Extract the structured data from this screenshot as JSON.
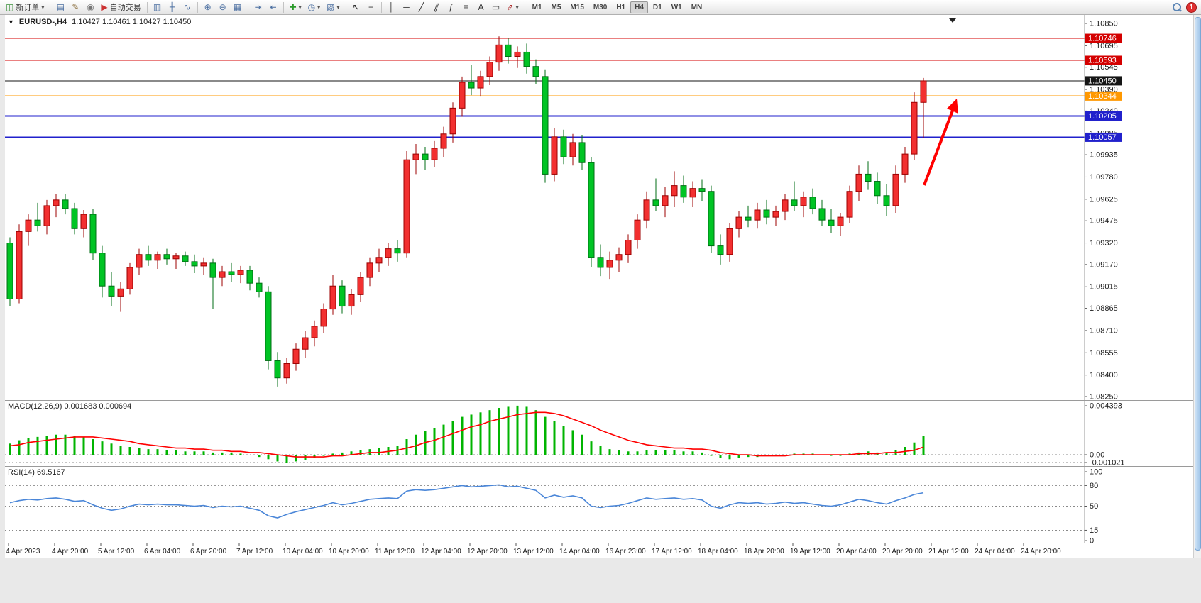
{
  "toolbar": {
    "new_order_label": "新订单",
    "auto_trading_label": "自动交易",
    "timeframes": [
      "M1",
      "M5",
      "M15",
      "M30",
      "H1",
      "H4",
      "D1",
      "W1",
      "MN"
    ],
    "active_timeframe": "H4",
    "notification_count": "1",
    "icon_glyphs": {
      "new_order": "◫",
      "profiles": "▤",
      "scripts": "✎",
      "experts": "◉",
      "auto_play": "▶",
      "bar_chart": "▥",
      "candle_chart": "╂",
      "line_chart": "∿",
      "zoom_in": "⊕",
      "zoom_out": "⊖",
      "tile": "▦",
      "auto_scroll": "⇥",
      "chart_shift": "⇤",
      "plus": "✚",
      "clock": "◷",
      "template": "▧",
      "cursor": "↖",
      "crosshair": "+",
      "vline": "│",
      "hline": "─",
      "trend": "╱",
      "channel": "∥",
      "fib": "ƒ",
      "grid": "≡",
      "text": "A",
      "label": "▭",
      "arrows": "⇗",
      "caret": "▾",
      "oct_toggle": "▼",
      "shift_marker": "▼"
    }
  },
  "chart": {
    "symbol_title": "EURUSD-,H4",
    "ohlc_text": "1.10427 1.10461 1.10427 1.10450",
    "price_axis_labels": [
      "1.10850",
      "1.10695",
      "1.10545",
      "1.10390",
      "1.10240",
      "1.10085",
      "1.09935",
      "1.09780",
      "1.09625",
      "1.09475",
      "1.09320",
      "1.09170",
      "1.09015",
      "1.08865",
      "1.08710",
      "1.08555",
      "1.08400",
      "1.08250"
    ],
    "price_levels": [
      {
        "label": "1.10746",
        "value": 1.10746,
        "color": "#d40000",
        "kind": "resistance-line"
      },
      {
        "label": "1.10593",
        "value": 1.10593,
        "color": "#d40000",
        "kind": "resistance-line"
      },
      {
        "label": "1.10450",
        "value": 1.1045,
        "color": "#151515",
        "kind": "current-price-line"
      },
      {
        "label": "1.10344",
        "value": 1.10344,
        "color": "#ff9800",
        "kind": "support-line"
      },
      {
        "label": "1.10205",
        "value": 1.10205,
        "color": "#2121cc",
        "kind": "support-line"
      },
      {
        "label": "1.10057",
        "value": 1.10057,
        "color": "#2121cc",
        "kind": "support-line"
      }
    ],
    "time_axis_labels": [
      "4 Apr 2023",
      "4 Apr 20:00",
      "5 Apr 12:00",
      "6 Apr 04:00",
      "6 Apr 20:00",
      "7 Apr 12:00",
      "10 Apr 04:00",
      "10 Apr 20:00",
      "11 Apr 12:00",
      "12 Apr 04:00",
      "12 Apr 20:00",
      "13 Apr 12:00",
      "14 Apr 04:00",
      "16 Apr 23:00",
      "17 Apr 12:00",
      "18 Apr 04:00",
      "18 Apr 20:00",
      "19 Apr 12:00",
      "20 Apr 04:00",
      "20 Apr 20:00",
      "21 Apr 12:00",
      "24 Apr 04:00",
      "24 Apr 20:00"
    ],
    "colors": {
      "background": "#ffffff",
      "axis_text": "#1a1a1a",
      "up": "#f23030",
      "up_stroke": "#9c0000",
      "down": "#00c424",
      "down_stroke": "#006e14",
      "arrow": "#ff0000"
    }
  },
  "chart_data": {
    "type": "candlestick",
    "symbol": "EURUSD-",
    "timeframe": "H4",
    "title": "EURUSD-,H4 1.10427 1.10461 1.10427 1.10450",
    "ylim": [
      1.0825,
      1.1085
    ],
    "candles_ohlc": [
      [
        1.0932,
        1.0936,
        1.0888,
        1.0893
      ],
      [
        1.0893,
        1.0945,
        1.089,
        1.094
      ],
      [
        1.094,
        1.0952,
        1.093,
        1.0948
      ],
      [
        1.0948,
        1.096,
        1.094,
        1.0944
      ],
      [
        1.0944,
        1.0962,
        1.0938,
        1.0958
      ],
      [
        1.0958,
        1.0966,
        1.095,
        1.0962
      ],
      [
        1.0962,
        1.0966,
        1.0952,
        1.0956
      ],
      [
        1.0956,
        1.096,
        1.0938,
        1.0942
      ],
      [
        1.0942,
        1.0955,
        1.0936,
        1.0952
      ],
      [
        1.0952,
        1.0956,
        1.092,
        1.0925
      ],
      [
        1.0925,
        1.093,
        1.0894,
        1.0902
      ],
      [
        1.0902,
        1.0912,
        1.0888,
        1.0895
      ],
      [
        1.0895,
        1.0905,
        1.0884,
        1.09
      ],
      [
        1.09,
        1.0918,
        1.0896,
        1.0915
      ],
      [
        1.0915,
        1.0928,
        1.091,
        1.0924
      ],
      [
        1.0924,
        1.093,
        1.0916,
        1.092
      ],
      [
        1.092,
        1.0926,
        1.0914,
        1.0924
      ],
      [
        1.0924,
        1.0928,
        1.0917,
        1.0921
      ],
      [
        1.0921,
        1.0925,
        1.0914,
        1.0923
      ],
      [
        1.0923,
        1.0926,
        1.0916,
        1.0919
      ],
      [
        1.0919,
        1.0924,
        1.0911,
        1.0916
      ],
      [
        1.0916,
        1.0922,
        1.091,
        1.0918
      ],
      [
        1.0918,
        1.0921,
        1.0886,
        1.0908
      ],
      [
        1.0908,
        1.0916,
        1.0902,
        1.0912
      ],
      [
        1.0912,
        1.0918,
        1.0905,
        1.091
      ],
      [
        1.091,
        1.0916,
        1.0904,
        1.0913
      ],
      [
        1.0913,
        1.0916,
        1.0899,
        1.0904
      ],
      [
        1.0904,
        1.0908,
        1.0894,
        1.0898
      ],
      [
        1.0898,
        1.0902,
        1.0844,
        1.085
      ],
      [
        1.085,
        1.0856,
        1.0832,
        1.0838
      ],
      [
        1.0838,
        1.0852,
        1.0834,
        1.0848
      ],
      [
        1.0848,
        1.0862,
        1.0843,
        1.0858
      ],
      [
        1.0858,
        1.0871,
        1.0852,
        1.0866
      ],
      [
        1.0866,
        1.0878,
        1.086,
        1.0874
      ],
      [
        1.0874,
        1.089,
        1.0869,
        1.0886
      ],
      [
        1.0886,
        1.091,
        1.0882,
        1.0902
      ],
      [
        1.0902,
        1.0906,
        1.0883,
        1.0888
      ],
      [
        1.0888,
        1.09,
        1.0882,
        1.0896
      ],
      [
        1.0896,
        1.0912,
        1.0891,
        1.0908
      ],
      [
        1.0908,
        1.0922,
        1.0902,
        1.0918
      ],
      [
        1.0918,
        1.0928,
        1.0912,
        1.0922
      ],
      [
        1.0922,
        1.0932,
        1.0916,
        1.0928
      ],
      [
        1.0928,
        1.0934,
        1.0919,
        1.0925
      ],
      [
        1.0925,
        1.0996,
        1.0922,
        1.099
      ],
      [
        1.099,
        1.1001,
        1.098,
        1.0994
      ],
      [
        1.0994,
        1.0999,
        1.0983,
        1.099
      ],
      [
        1.099,
        1.1003,
        1.0985,
        1.0998
      ],
      [
        1.0998,
        1.1013,
        1.0992,
        1.1008
      ],
      [
        1.1008,
        1.103,
        1.1002,
        1.1026
      ],
      [
        1.1026,
        1.1048,
        1.102,
        1.1044
      ],
      [
        1.1044,
        1.1056,
        1.1035,
        1.104
      ],
      [
        1.104,
        1.1052,
        1.1034,
        1.1048
      ],
      [
        1.1048,
        1.1062,
        1.1042,
        1.1058
      ],
      [
        1.1058,
        1.1076,
        1.1052,
        1.107
      ],
      [
        1.107,
        1.1075,
        1.1057,
        1.1062
      ],
      [
        1.1062,
        1.1069,
        1.1054,
        1.1065
      ],
      [
        1.1065,
        1.1071,
        1.105,
        1.1055
      ],
      [
        1.1055,
        1.106,
        1.1043,
        1.1048
      ],
      [
        1.1048,
        1.1053,
        1.0974,
        1.098
      ],
      [
        1.098,
        1.1012,
        1.0975,
        1.1006
      ],
      [
        1.1006,
        1.1011,
        1.0987,
        1.0992
      ],
      [
        1.0992,
        1.1008,
        1.0986,
        1.1002
      ],
      [
        1.1002,
        1.1007,
        1.0983,
        1.0988
      ],
      [
        1.0988,
        1.0992,
        1.0915,
        1.0922
      ],
      [
        1.0922,
        1.0931,
        1.0909,
        1.0915
      ],
      [
        1.0915,
        1.0926,
        1.0907,
        1.092
      ],
      [
        1.092,
        1.0929,
        1.0912,
        1.0924
      ],
      [
        1.0924,
        1.0938,
        1.0918,
        1.0934
      ],
      [
        1.0934,
        1.0952,
        1.0928,
        1.0948
      ],
      [
        1.0948,
        1.0968,
        1.0942,
        1.0962
      ],
      [
        1.0962,
        1.0977,
        1.0954,
        1.0958
      ],
      [
        1.0958,
        1.0971,
        1.095,
        1.0965
      ],
      [
        1.0965,
        1.0982,
        1.0957,
        1.0972
      ],
      [
        1.0972,
        1.0979,
        1.096,
        1.0964
      ],
      [
        1.0964,
        1.0975,
        1.0957,
        1.097
      ],
      [
        1.097,
        1.0976,
        1.0961,
        1.0968
      ],
      [
        1.0968,
        1.0972,
        1.0925,
        1.093
      ],
      [
        1.093,
        1.0938,
        1.0917,
        1.0924
      ],
      [
        1.0924,
        1.0946,
        1.0919,
        1.0942
      ],
      [
        1.0942,
        1.0954,
        1.0936,
        1.095
      ],
      [
        1.095,
        1.0958,
        1.0943,
        1.0948
      ],
      [
        1.0948,
        1.096,
        1.0942,
        1.0955
      ],
      [
        1.0955,
        1.0962,
        1.0945,
        1.095
      ],
      [
        1.095,
        1.0958,
        1.0944,
        1.0954
      ],
      [
        1.0954,
        1.0966,
        1.0948,
        1.0962
      ],
      [
        1.0962,
        1.0975,
        1.0954,
        1.0958
      ],
      [
        1.0958,
        1.0968,
        1.095,
        1.0964
      ],
      [
        1.0964,
        1.097,
        1.0952,
        1.0956
      ],
      [
        1.0956,
        1.0962,
        1.0944,
        1.0948
      ],
      [
        1.0948,
        1.0956,
        1.0939,
        1.0944
      ],
      [
        1.0944,
        1.0953,
        1.0937,
        1.095
      ],
      [
        1.095,
        1.0972,
        1.0946,
        1.0968
      ],
      [
        1.0968,
        1.0986,
        1.0961,
        1.098
      ],
      [
        1.098,
        1.0989,
        1.0969,
        1.0975
      ],
      [
        1.0975,
        1.0981,
        1.0959,
        1.0965
      ],
      [
        1.0965,
        1.0973,
        1.0951,
        1.0958
      ],
      [
        1.0958,
        1.0986,
        1.0953,
        1.098
      ],
      [
        1.098,
        1.0999,
        1.0974,
        1.0994
      ],
      [
        1.0994,
        1.1037,
        1.099,
        1.103
      ],
      [
        1.103,
        1.1047,
        1.1005,
        1.1045
      ]
    ],
    "indicators": {
      "macd": {
        "label_text": "MACD(12,26,9) 0.001683 0.000694",
        "histogram_color": "#00b400",
        "signal_color": "#ff0000",
        "scale_labels": [
          "0.004393",
          "0.00",
          "-0.001021"
        ],
        "histogram": [
          0.001,
          0.0013,
          0.0015,
          0.0016,
          0.0017,
          0.0018,
          0.0018,
          0.0017,
          0.0016,
          0.0014,
          0.0012,
          0.001,
          0.0008,
          0.0007,
          0.0006,
          0.0005,
          0.0005,
          0.0004,
          0.0004,
          0.0003,
          0.0003,
          0.0003,
          0.0002,
          0.0002,
          0.0002,
          0.0001,
          0.0,
          -0.0002,
          -0.0004,
          -0.0006,
          -0.0007,
          -0.0006,
          -0.0005,
          -0.0003,
          -0.0001,
          0.0001,
          0.0002,
          0.0003,
          0.0004,
          0.0005,
          0.0006,
          0.0007,
          0.0008,
          0.0014,
          0.0018,
          0.0021,
          0.0024,
          0.0027,
          0.003,
          0.0034,
          0.0036,
          0.0038,
          0.004,
          0.0042,
          0.0043,
          0.0044,
          0.0043,
          0.004,
          0.0034,
          0.003,
          0.0026,
          0.0022,
          0.0018,
          0.0012,
          0.0008,
          0.0005,
          0.0004,
          0.0003,
          0.0003,
          0.0004,
          0.0004,
          0.0004,
          0.0004,
          0.0003,
          0.0003,
          0.0002,
          -0.0001,
          -0.0003,
          -0.0004,
          -0.0003,
          -0.0002,
          -0.0002,
          -0.0001,
          -0.0001,
          0.0,
          0.0001,
          0.0001,
          0.0001,
          0.0,
          -0.0001,
          -0.0001,
          0.0001,
          0.0002,
          0.0003,
          0.0002,
          0.0002,
          0.0004,
          0.0007,
          0.0011,
          0.001683
        ],
        "signal": [
          0.0008,
          0.0009,
          0.0011,
          0.0012,
          0.0013,
          0.0014,
          0.0015,
          0.0016,
          0.0016,
          0.0016,
          0.0015,
          0.0014,
          0.0013,
          0.0012,
          0.001,
          0.0009,
          0.0008,
          0.0007,
          0.0006,
          0.0006,
          0.0005,
          0.0005,
          0.0004,
          0.0004,
          0.0003,
          0.0003,
          0.0002,
          0.0002,
          0.0001,
          0.0,
          -0.0001,
          -0.0002,
          -0.0002,
          -0.0002,
          -0.0002,
          -0.0001,
          -0.0001,
          0.0,
          0.0001,
          0.0002,
          0.0002,
          0.0003,
          0.0004,
          0.0006,
          0.0008,
          0.0011,
          0.0013,
          0.0016,
          0.0019,
          0.0022,
          0.0025,
          0.0027,
          0.003,
          0.0032,
          0.0034,
          0.0036,
          0.0037,
          0.0038,
          0.0038,
          0.0037,
          0.0035,
          0.0032,
          0.0029,
          0.0026,
          0.0022,
          0.0019,
          0.0016,
          0.0013,
          0.0011,
          0.0009,
          0.0008,
          0.0007,
          0.0006,
          0.0006,
          0.0005,
          0.0005,
          0.0004,
          0.0002,
          0.0001,
          0.0,
          0.0,
          -0.0001,
          -0.0001,
          -0.0001,
          -0.0001,
          0.0,
          0.0,
          0.0,
          0.0,
          0.0,
          0.0,
          0.0,
          0.0001,
          0.0001,
          0.0001,
          0.0002,
          0.0002,
          0.0003,
          0.0004,
          0.000694
        ]
      },
      "rsi": {
        "label_text": "RSI(14) 69.5167",
        "line_color": "#4a86d8",
        "scale_labels": [
          "100",
          "80",
          "50",
          "15",
          "0"
        ],
        "level_lines": [
          80,
          50,
          15
        ],
        "values": [
          55,
          58,
          60,
          59,
          61,
          62,
          60,
          57,
          58,
          52,
          47,
          44,
          46,
          50,
          53,
          52,
          53,
          52,
          52,
          51,
          50,
          51,
          48,
          50,
          49,
          50,
          47,
          44,
          36,
          33,
          38,
          42,
          45,
          48,
          51,
          55,
          52,
          54,
          57,
          60,
          61,
          62,
          61,
          72,
          74,
          73,
          74,
          76,
          78,
          80,
          78,
          79,
          80,
          81,
          78,
          79,
          76,
          73,
          62,
          66,
          63,
          65,
          62,
          50,
          48,
          50,
          51,
          54,
          58,
          62,
          60,
          61,
          62,
          60,
          61,
          59,
          50,
          47,
          52,
          55,
          54,
          55,
          53,
          54,
          56,
          54,
          55,
          53,
          51,
          50,
          52,
          56,
          60,
          58,
          55,
          53,
          58,
          62,
          67,
          69.5167
        ]
      }
    },
    "annotation_arrow": {
      "color": "#ff0000",
      "direction": "up-right"
    }
  }
}
